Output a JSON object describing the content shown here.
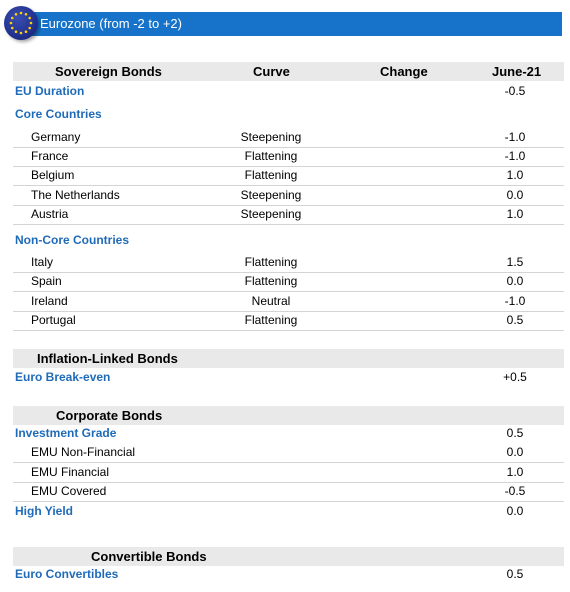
{
  "header": {
    "title": "Eurozone (from -2 to +2)"
  },
  "sovereign": {
    "heading": "Sovereign Bonds",
    "col_curve": "Curve",
    "col_change": "Change",
    "col_date": "June-21",
    "eu_duration": {
      "label": "EU Duration",
      "value": "-0.5"
    },
    "core_label": "Core Countries",
    "core": [
      {
        "name": "Germany",
        "curve": "Steepening",
        "value": "-1.0"
      },
      {
        "name": "France",
        "curve": "Flattening",
        "value": "-1.0"
      },
      {
        "name": "Belgium",
        "curve": "Flattening",
        "value": "1.0"
      },
      {
        "name": "The Netherlands",
        "curve": "Steepening",
        "value": "0.0"
      },
      {
        "name": "Austria",
        "curve": "Steepening",
        "value": "1.0"
      }
    ],
    "noncore_label": "Non-Core Countries",
    "noncore": [
      {
        "name": "Italy",
        "curve": "Flattening",
        "value": "1.5"
      },
      {
        "name": "Spain",
        "curve": "Flattening",
        "value": "0.0"
      },
      {
        "name": "Ireland",
        "curve": "Neutral",
        "value": "-1.0"
      },
      {
        "name": "Portugal",
        "curve": "Flattening",
        "value": "0.5"
      }
    ]
  },
  "inflation": {
    "heading": "Inflation-Linked Bonds",
    "breakeven": {
      "label": "Euro Break-even",
      "value": "+0.5"
    }
  },
  "corporate": {
    "heading": "Corporate Bonds",
    "ig": {
      "label": "Investment Grade",
      "value": "0.5"
    },
    "items": [
      {
        "name": "EMU Non-Financial",
        "value": "0.0"
      },
      {
        "name": "EMU Financial",
        "value": "1.0"
      },
      {
        "name": "EMU Covered",
        "value": "-0.5"
      }
    ],
    "hy": {
      "label": "High Yield",
      "value": "0.0"
    }
  },
  "convertible": {
    "heading": "Convertible Bonds",
    "euro": {
      "label": "Euro Convertibles",
      "value": "0.5"
    }
  },
  "colors": {
    "title_bar": "#1673c9",
    "category_text": "#1f6bb8",
    "section_bg": "#e9e9e9"
  },
  "icons": {
    "flag": "eu-flag-icon"
  }
}
